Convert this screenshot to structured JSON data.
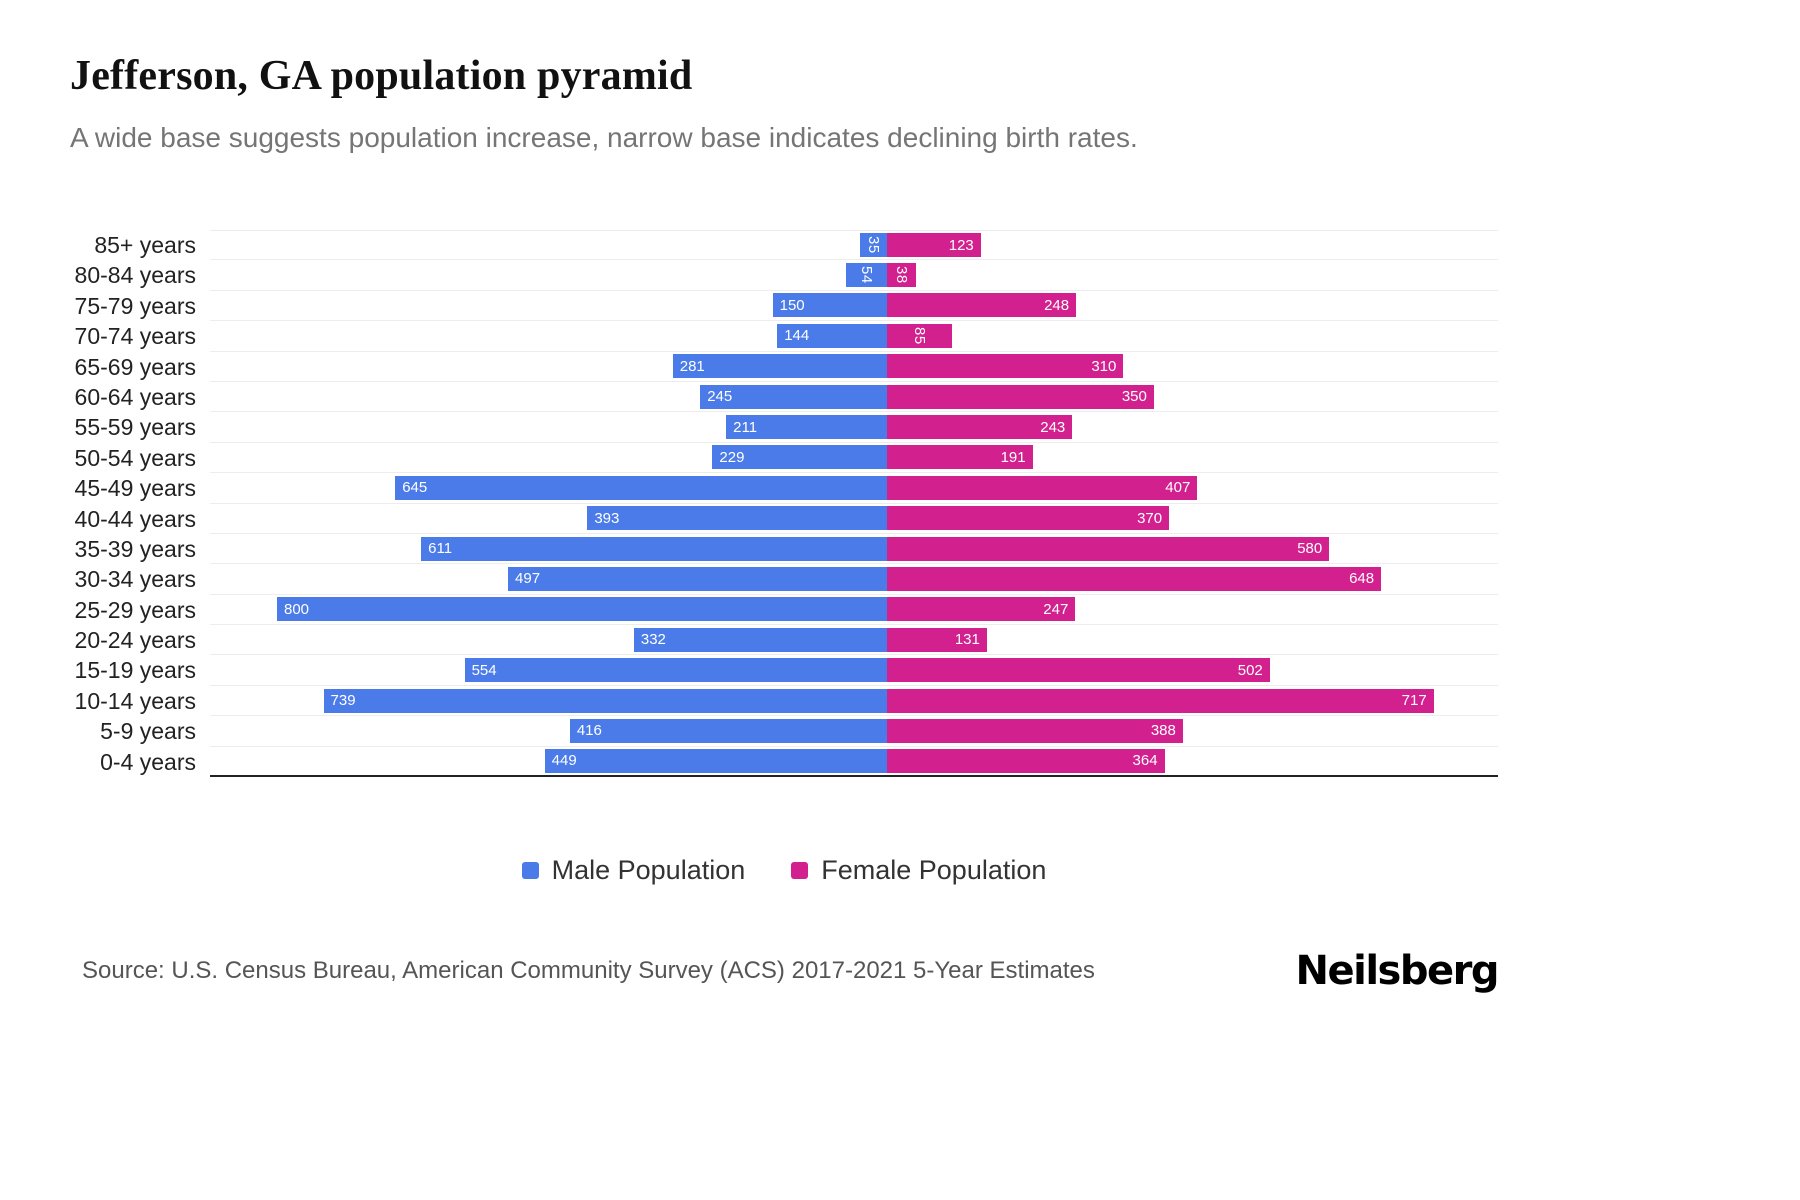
{
  "header": {
    "title": "Jefferson, GA population pyramid",
    "subtitle": "A wide base suggests population increase, narrow base indicates declining birth rates."
  },
  "chart_data": {
    "type": "bar",
    "variant": "population-pyramid",
    "orientation": "horizontal",
    "categories": [
      "85+ years",
      "80-84 years",
      "75-79 years",
      "70-74 years",
      "65-69 years",
      "60-64 years",
      "55-59 years",
      "50-54 years",
      "45-49 years",
      "40-44 years",
      "35-39 years",
      "30-34 years",
      "25-29 years",
      "20-24 years",
      "15-19 years",
      "10-14 years",
      "5-9 years",
      "0-4 years"
    ],
    "series": [
      {
        "name": "Male Population",
        "side": "left",
        "color": "#4a7be8",
        "values": [
          35,
          54,
          150,
          144,
          281,
          245,
          211,
          229,
          645,
          393,
          611,
          497,
          800,
          332,
          554,
          739,
          416,
          449
        ]
      },
      {
        "name": "Female Population",
        "side": "right",
        "color": "#d2208e",
        "values": [
          123,
          38,
          248,
          85,
          310,
          350,
          243,
          191,
          407,
          370,
          580,
          648,
          247,
          131,
          502,
          717,
          388,
          364
        ]
      }
    ],
    "xmax": 800,
    "value_labels": "inside-end-white",
    "grid": "horizontal-light",
    "legend_position": "bottom-center"
  },
  "footer": {
    "source": "Source: U.S. Census Bureau, American Community Survey (ACS) 2017-2021 5-Year Estimates",
    "brand": "Neilsberg"
  }
}
